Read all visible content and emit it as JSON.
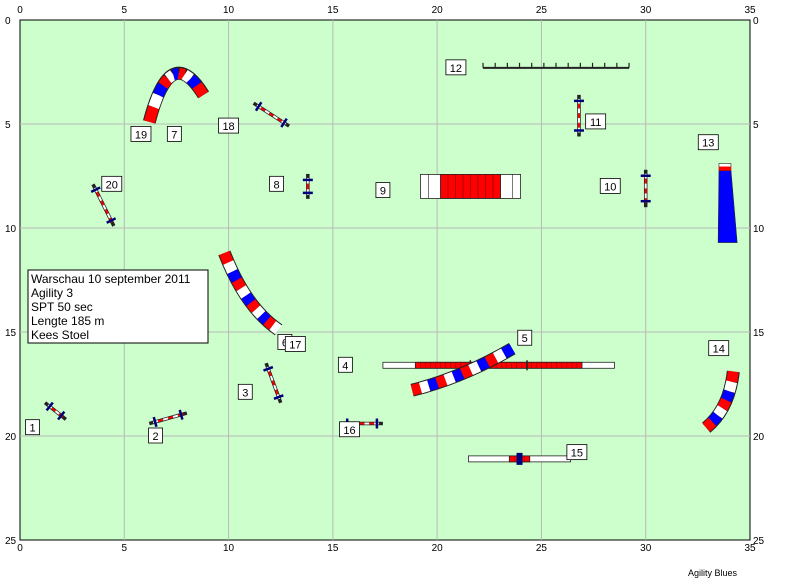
{
  "course": {
    "info_lines": [
      "Warschau 10 september 2011",
      "Agility 3",
      "SPT 50 sec",
      "Lengte 185 m",
      "Kees Stoel"
    ],
    "credit": "Agility Blues"
  },
  "axes": {
    "x_ticks": [
      "0",
      "5",
      "10",
      "15",
      "20",
      "25",
      "30",
      "35"
    ],
    "y_ticks": [
      "0",
      "5",
      "10",
      "15",
      "20",
      "25"
    ],
    "x_range": [
      0,
      35
    ],
    "y_range": [
      0,
      25
    ]
  },
  "colors": {
    "field": "#ccffcc",
    "grid": "#b8b8b8",
    "red": "#ff0000",
    "blue": "#0000ff",
    "white": "#ffffff",
    "dark": "#222222"
  },
  "obstacles": [
    {
      "num": "1",
      "kind": "jump",
      "at": [
        1.2,
        18.4
      ],
      "to": [
        2.2,
        19.2
      ],
      "label_at": [
        0.6,
        19.6
      ]
    },
    {
      "num": "2",
      "kind": "jump",
      "at": [
        6.2,
        19.4
      ],
      "to": [
        8.0,
        18.9
      ],
      "label_at": [
        6.5,
        20.0
      ]
    },
    {
      "num": "3",
      "kind": "jump",
      "at": [
        11.8,
        16.5
      ],
      "to": [
        12.5,
        18.4
      ],
      "label_at": [
        10.8,
        17.9
      ]
    },
    {
      "num": "4",
      "kind": "dogwalk",
      "at": [
        17.4,
        16.6
      ],
      "to": [
        28.5,
        16.6
      ],
      "label_at": [
        15.6,
        16.6
      ]
    },
    {
      "num": "5",
      "kind": "tunnel",
      "curve": [
        [
          18.8,
          17.8
        ],
        [
          21.2,
          17.2
        ],
        [
          23.6,
          15.8
        ]
      ],
      "label_at": [
        24.2,
        15.3
      ]
    },
    {
      "num": "6",
      "kind": "tunnel",
      "curve": [
        [
          9.8,
          11.2
        ],
        [
          10.8,
          13.8
        ],
        [
          12.4,
          14.9
        ]
      ],
      "label_at": [
        12.7,
        15.5
      ]
    },
    {
      "num": "7",
      "kind": "tunnel",
      "curve": [
        [
          6.2,
          4.9
        ],
        [
          7.2,
          1.0
        ],
        [
          8.8,
          3.6
        ]
      ],
      "label_at": [
        7.4,
        5.5
      ]
    },
    {
      "num": "8",
      "kind": "jump",
      "at": [
        13.8,
        7.4
      ],
      "to": [
        13.8,
        8.6
      ],
      "label_at": [
        12.3,
        7.9
      ]
    },
    {
      "num": "9",
      "kind": "tire",
      "at": [
        19.2,
        8.0
      ],
      "to": [
        24.0,
        8.0
      ],
      "label_at": [
        17.4,
        8.2
      ]
    },
    {
      "num": "10",
      "kind": "jump",
      "at": [
        30.0,
        7.2
      ],
      "to": [
        30.0,
        9.0
      ],
      "label_at": [
        28.3,
        8.0
      ]
    },
    {
      "num": "11",
      "kind": "jump",
      "at": [
        26.8,
        3.6
      ],
      "to": [
        26.8,
        5.6
      ],
      "label_at": [
        27.6,
        4.9
      ]
    },
    {
      "num": "12",
      "kind": "weave",
      "at": [
        22.2,
        2.3
      ],
      "to": [
        29.2,
        2.3
      ],
      "label_at": [
        20.9,
        2.3
      ]
    },
    {
      "num": "13",
      "kind": "aframe",
      "at": [
        33.8,
        6.9
      ],
      "to": [
        34.0,
        10.7
      ],
      "label_at": [
        33.0,
        5.9
      ]
    },
    {
      "num": "14",
      "kind": "tunnel",
      "curve": [
        [
          34.2,
          16.9
        ],
        [
          34.0,
          18.7
        ],
        [
          32.9,
          19.6
        ]
      ],
      "label_at": [
        33.5,
        15.8
      ]
    },
    {
      "num": "15",
      "kind": "seesaw",
      "at": [
        21.5,
        21.1
      ],
      "to": [
        26.4,
        21.1
      ],
      "label_at": [
        26.7,
        20.8
      ]
    },
    {
      "num": "16",
      "kind": "jump",
      "at": [
        15.4,
        19.4
      ],
      "to": [
        17.4,
        19.4
      ],
      "label_at": [
        15.8,
        19.7
      ]
    },
    {
      "num": "17",
      "kind": "label_only",
      "label_at": [
        13.2,
        15.6
      ]
    },
    {
      "num": "18",
      "kind": "jump",
      "at": [
        11.2,
        4.0
      ],
      "to": [
        12.9,
        5.1
      ],
      "label_at": [
        10.0,
        5.1
      ]
    },
    {
      "num": "19",
      "kind": "label_only",
      "label_at": [
        5.8,
        5.5
      ]
    },
    {
      "num": "20",
      "kind": "jump",
      "at": [
        3.5,
        7.9
      ],
      "to": [
        4.5,
        9.9
      ],
      "label_at": [
        4.4,
        7.9
      ]
    }
  ]
}
